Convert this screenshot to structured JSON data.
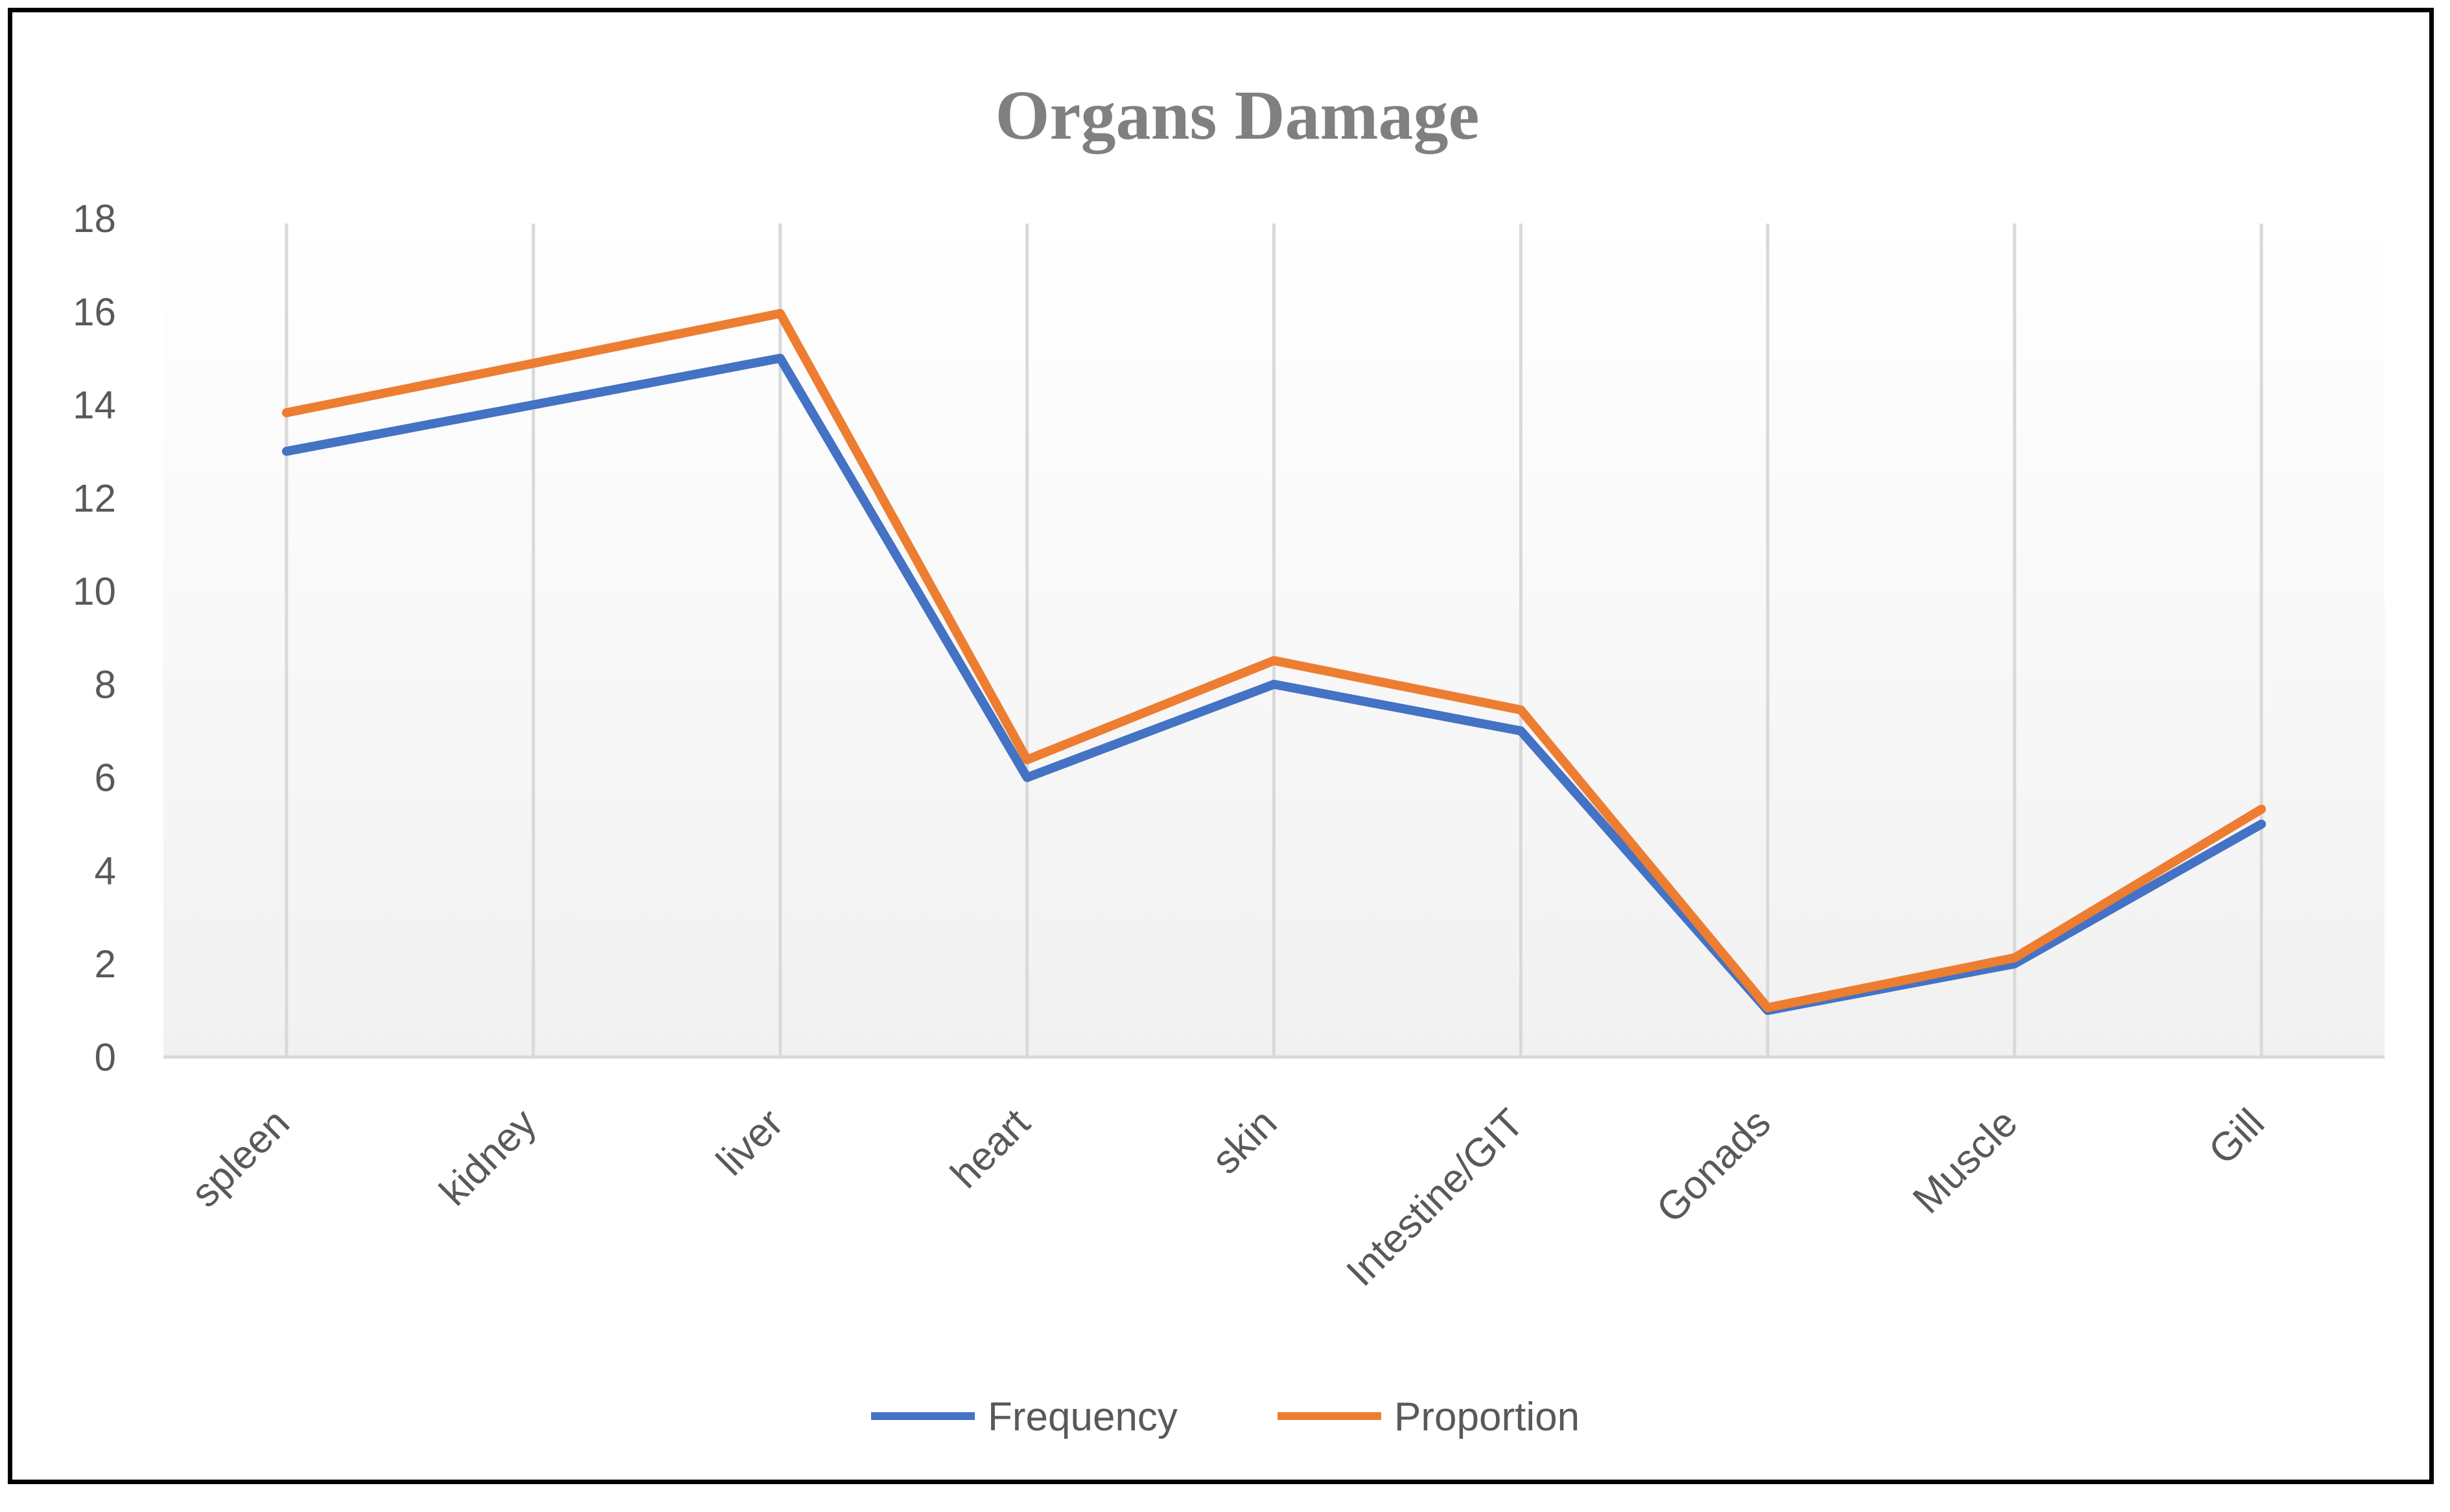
{
  "chart_data": {
    "type": "line",
    "title": "Organs Damage",
    "xlabel": "",
    "ylabel": "",
    "categories": [
      "spleen",
      "kidney",
      "liver",
      "heart",
      "skin",
      "Intestine/GIT",
      "Gonads",
      "Muscle",
      "Gill"
    ],
    "series": [
      {
        "name": "Frequency",
        "color": "#4472C4",
        "values": [
          13,
          14,
          15,
          6,
          8,
          7,
          1,
          2,
          5
        ]
      },
      {
        "name": "Proportion",
        "color": "#ED7D31",
        "values": [
          13.83,
          14.89,
          15.96,
          6.38,
          8.51,
          7.45,
          1.06,
          2.13,
          5.32
        ]
      }
    ],
    "yticks": [
      "0",
      "2",
      "4",
      "6",
      "8",
      "10",
      "12",
      "14",
      "16",
      "18"
    ],
    "ylim": [
      0,
      18
    ],
    "grid": "vertical",
    "legend": "bottom"
  }
}
